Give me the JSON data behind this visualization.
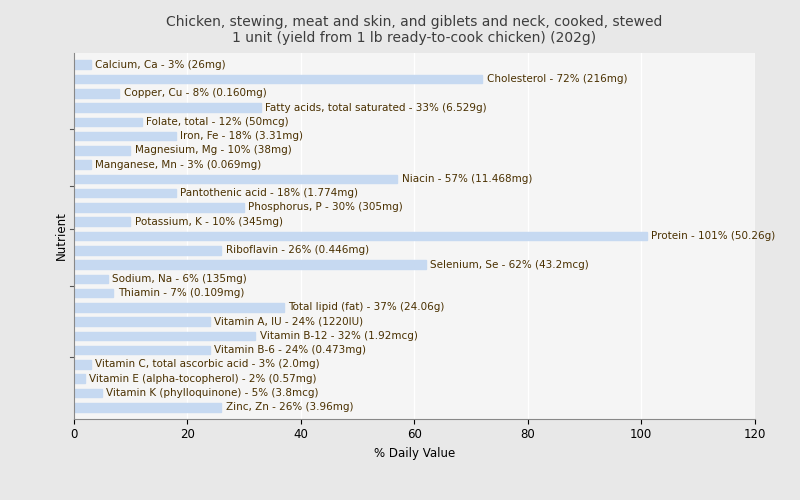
{
  "title": "Chicken, stewing, meat and skin, and giblets and neck, cooked, stewed\n1 unit (yield from 1 lb ready-to-cook chicken) (202g)",
  "xlabel": "% Daily Value",
  "ylabel": "Nutrient",
  "xlim": [
    0,
    120
  ],
  "xticks": [
    0,
    20,
    40,
    60,
    80,
    100,
    120
  ],
  "bar_color": "#c6d9f1",
  "background_color": "#e8e8e8",
  "plot_bg_color": "#f5f5f5",
  "nutrients": [
    {
      "label": "Calcium, Ca - 3% (26mg)",
      "value": 3
    },
    {
      "label": "Cholesterol - 72% (216mg)",
      "value": 72
    },
    {
      "label": "Copper, Cu - 8% (0.160mg)",
      "value": 8
    },
    {
      "label": "Fatty acids, total saturated - 33% (6.529g)",
      "value": 33
    },
    {
      "label": "Folate, total - 12% (50mcg)",
      "value": 12
    },
    {
      "label": "Iron, Fe - 18% (3.31mg)",
      "value": 18
    },
    {
      "label": "Magnesium, Mg - 10% (38mg)",
      "value": 10
    },
    {
      "label": "Manganese, Mn - 3% (0.069mg)",
      "value": 3
    },
    {
      "label": "Niacin - 57% (11.468mg)",
      "value": 57
    },
    {
      "label": "Pantothenic acid - 18% (1.774mg)",
      "value": 18
    },
    {
      "label": "Phosphorus, P - 30% (305mg)",
      "value": 30
    },
    {
      "label": "Potassium, K - 10% (345mg)",
      "value": 10
    },
    {
      "label": "Protein - 101% (50.26g)",
      "value": 101
    },
    {
      "label": "Riboflavin - 26% (0.446mg)",
      "value": 26
    },
    {
      "label": "Selenium, Se - 62% (43.2mcg)",
      "value": 62
    },
    {
      "label": "Sodium, Na - 6% (135mg)",
      "value": 6
    },
    {
      "label": "Thiamin - 7% (0.109mg)",
      "value": 7
    },
    {
      "label": "Total lipid (fat) - 37% (24.06g)",
      "value": 37
    },
    {
      "label": "Vitamin A, IU - 24% (1220IU)",
      "value": 24
    },
    {
      "label": "Vitamin B-12 - 32% (1.92mcg)",
      "value": 32
    },
    {
      "label": "Vitamin B-6 - 24% (0.473mg)",
      "value": 24
    },
    {
      "label": "Vitamin C, total ascorbic acid - 3% (2.0mg)",
      "value": 3
    },
    {
      "label": "Vitamin E (alpha-tocopherol) - 2% (0.57mg)",
      "value": 2
    },
    {
      "label": "Vitamin K (phylloquinone) - 5% (3.8mcg)",
      "value": 5
    },
    {
      "label": "Zinc, Zn - 26% (3.96mg)",
      "value": 26
    }
  ],
  "ytick_positions": [
    3.5,
    8.5,
    13.5,
    18.5,
    23.5
  ],
  "title_color": "#3d3d3d",
  "label_color": "#4a3000",
  "title_fontsize": 10,
  "label_fontsize": 7.5,
  "tick_fontsize": 8.5,
  "bar_height": 0.6
}
